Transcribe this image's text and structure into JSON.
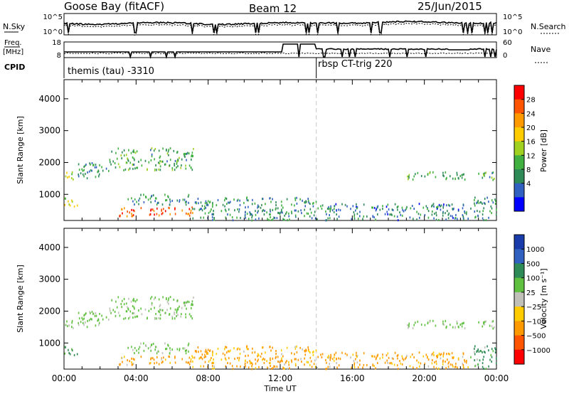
{
  "header": {
    "station": "Goose Bay (fitACF)",
    "beam": "Beam 12",
    "date": "25/Jun/2015"
  },
  "noise_panel": {
    "left_label": "N.Sky",
    "right_label": "N.Search",
    "left_ticks": [
      "10^5",
      "10^0"
    ],
    "right_ticks": [
      "10^5",
      "10^0"
    ]
  },
  "freq_panel": {
    "left_label_top": "Freq.",
    "left_label_unit": "[MHz]",
    "right_label": "Nave",
    "left_ticks": [
      "18",
      "8"
    ],
    "right_ticks": [
      "60",
      "0"
    ],
    "cpid_label": "CPID",
    "modes": [
      {
        "name": "themis (tau) -3310",
        "start": 0.0,
        "end": 14.0
      },
      {
        "name": "rbsp CT-trig 220",
        "start": 14.0,
        "end": 24.0
      }
    ],
    "change_time": 14.0
  },
  "power_panel": {
    "ylabel": "Slant Range [km]",
    "colorbar_label": "Power [dB]",
    "colorbar_ticks": [
      "28",
      "24",
      "20",
      "16",
      "12",
      "8",
      "4"
    ],
    "colors": [
      "#ff0000",
      "#ff5500",
      "#ff9900",
      "#ffcc00",
      "#a0d020",
      "#40b040",
      "#2e8b57",
      "#3060c0",
      "#0000ff"
    ]
  },
  "velocity_panel": {
    "ylabel": "Slant Range [km]",
    "colorbar_label": "Velocity [m s⁻¹]",
    "colorbar_ticks": [
      "1000",
      "500",
      "100",
      "25",
      "−25",
      "−100",
      "−500",
      "−1000"
    ],
    "colors": [
      "#1a3caa",
      "#3060c0",
      "#2e8b57",
      "#60c040",
      "#c0c0b8",
      "#ffcc00",
      "#ff9900",
      "#ff5500",
      "#ff0000"
    ]
  },
  "range_ticks": [
    "1000",
    "2000",
    "3000",
    "4000"
  ],
  "time_ticks": [
    "00:00",
    "04:00",
    "08:00",
    "12:00",
    "16:00",
    "20:00",
    "00:00"
  ],
  "xlabel": "Time UT",
  "chart_data": {
    "type": "heatmap",
    "x_axis": "Time UT",
    "x_range_hours": [
      0,
      24
    ],
    "y_axis": "Slant Range [km]",
    "y_range_km": [
      180,
      4600
    ],
    "series": [
      {
        "name": "Power [dB]",
        "colorbar_range": [
          0,
          30
        ]
      },
      {
        "name": "Velocity [m s-1]",
        "colorbar_range": [
          -1000,
          1000
        ]
      }
    ],
    "scatter_regions": [
      {
        "t_start": 0.0,
        "t_end": 0.6,
        "range_start": 1400,
        "range_end": 1750,
        "power": 14,
        "velocity": 25
      },
      {
        "t_start": 0.6,
        "t_end": 2.5,
        "range_start": 1500,
        "range_end": 2000,
        "power": 8,
        "velocity": 25
      },
      {
        "t_start": 2.5,
        "t_end": 7.2,
        "range_start": 1750,
        "range_end": 2450,
        "power": 10,
        "velocity": 25
      },
      {
        "t_start": 0.0,
        "t_end": 0.8,
        "range_start": 600,
        "range_end": 900,
        "power": 18,
        "velocity": 100
      },
      {
        "t_start": 3.0,
        "t_end": 7.2,
        "range_start": 300,
        "range_end": 600,
        "power": 26,
        "velocity": -100
      },
      {
        "t_start": 3.5,
        "t_end": 7.0,
        "range_start": 650,
        "range_end": 1000,
        "power": 8,
        "velocity": 25
      },
      {
        "t_start": 7.0,
        "t_end": 14.0,
        "range_start": 180,
        "range_end": 900,
        "power": 8,
        "velocity": -100
      },
      {
        "t_start": 14.0,
        "t_end": 22.5,
        "range_start": 180,
        "range_end": 700,
        "power": 6,
        "velocity": -100
      },
      {
        "t_start": 19.0,
        "t_end": 24.0,
        "range_start": 1450,
        "range_end": 1700,
        "power": 10,
        "velocity": 25
      },
      {
        "t_start": 22.5,
        "t_end": 24.0,
        "range_start": 180,
        "range_end": 900,
        "power": 8,
        "velocity": 100
      }
    ]
  }
}
